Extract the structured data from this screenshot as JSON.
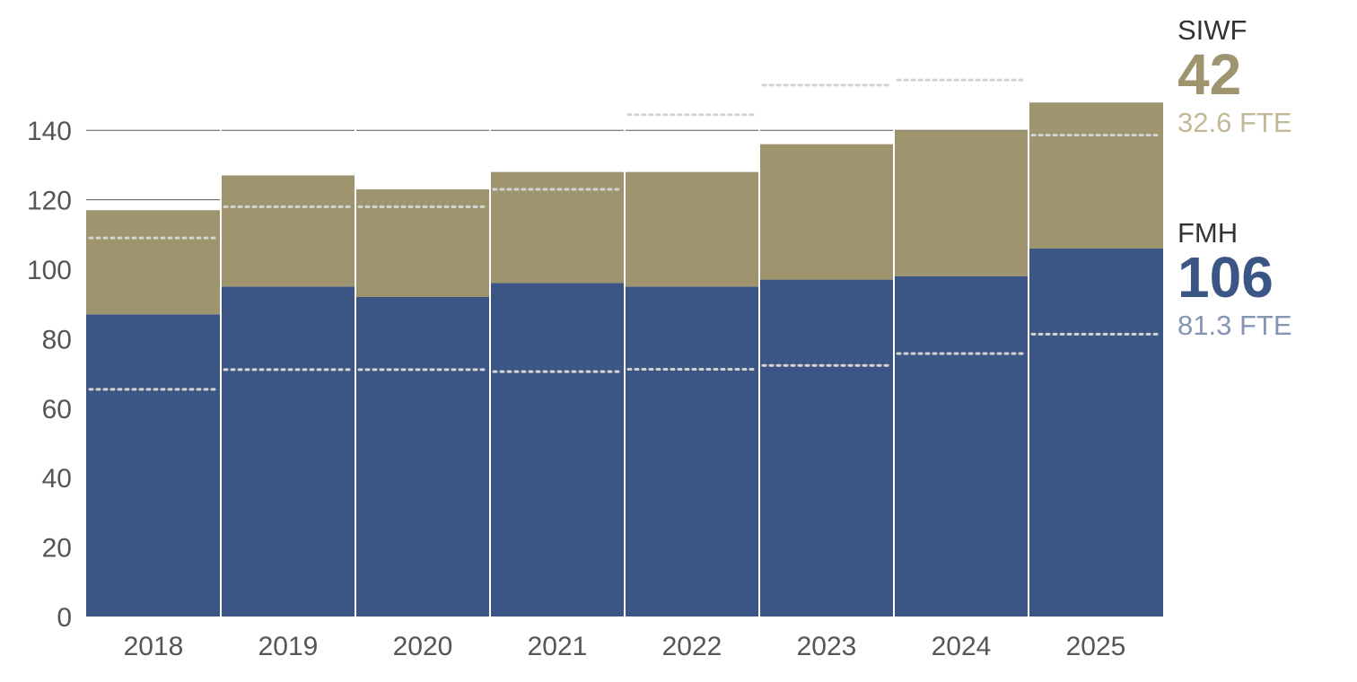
{
  "chart_data": {
    "type": "bar",
    "stacked": true,
    "categories": [
      "2018",
      "2019",
      "2020",
      "2021",
      "2022",
      "2023",
      "2024",
      "2025"
    ],
    "series": [
      {
        "name": "FMH",
        "color": "#3b5585",
        "values": [
          87,
          95,
          92,
          96,
          95,
          97,
          98,
          106
        ],
        "fte": [
          65.4,
          71.1,
          71.1,
          70.5,
          71.2,
          72.3,
          75.7,
          81.3
        ]
      },
      {
        "name": "SIWF",
        "color": "#9e946d",
        "values": [
          30,
          32,
          31,
          32,
          33,
          39,
          42,
          42
        ],
        "fte": [
          22,
          23,
          26,
          27,
          49.5,
          56,
          56.5,
          32.6
        ]
      }
    ],
    "fte_line_color": "#d3d3d3",
    "yticks": [
      0,
      20,
      40,
      60,
      80,
      100,
      120,
      140
    ],
    "ylim": [
      0,
      150
    ],
    "grid": true
  },
  "legend": {
    "siwf": {
      "name": "SIWF",
      "value": "42",
      "fte": "32.6 FTE",
      "color": "#9e946d",
      "fte_color": "#c2b998"
    },
    "fmh": {
      "name": "FMH",
      "value": "106",
      "fte": "81.3 FTE",
      "color": "#3b5585",
      "fte_color": "#8596b5"
    }
  }
}
